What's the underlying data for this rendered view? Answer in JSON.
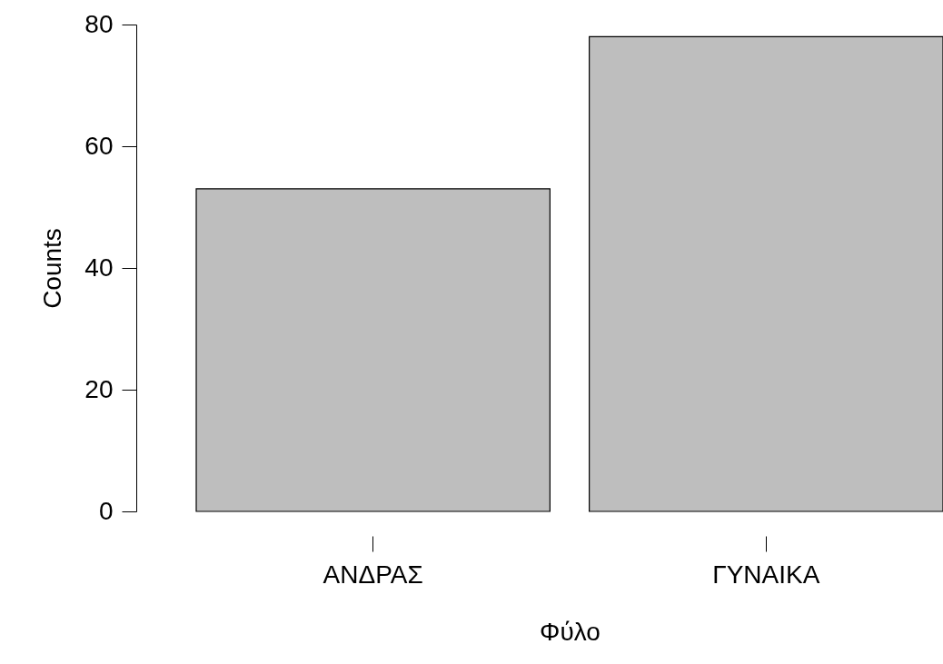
{
  "chart_data": {
    "type": "bar",
    "categories": [
      "ΑΝΔΡΑΣ",
      "ΓΥΝΑΙΚΑ"
    ],
    "values": [
      53,
      78
    ],
    "color": "#bebebe",
    "xlabel": "Φύλο",
    "ylabel": "Counts",
    "ylim": [
      0,
      80
    ],
    "yticks": [
      0,
      20,
      40,
      60,
      80
    ],
    "grid": false
  }
}
